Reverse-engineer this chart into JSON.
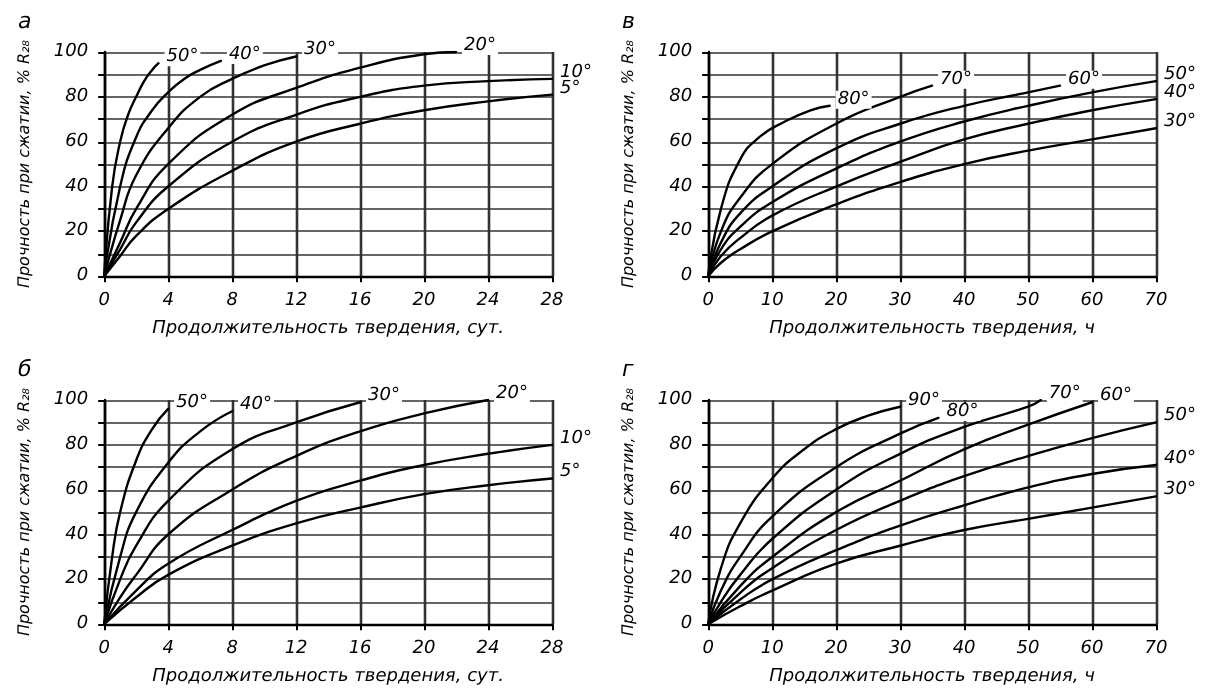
{
  "chart_data": [
    {
      "type": "line",
      "title": "а",
      "xlabel": "Продолжительность твердения, сут.",
      "ylabel": "Прочность при сжатии, % R₂₈",
      "xlim": [
        0,
        28
      ],
      "xticks": [
        0,
        4,
        8,
        12,
        16,
        20,
        24,
        28
      ],
      "ylim": [
        0,
        100
      ],
      "yticks": [
        0,
        {
          "value": 10,
          "label": null
        },
        20,
        {
          "value": 30,
          "label": null
        },
        40,
        {
          "value": 50,
          "label": null
        },
        60,
        {
          "value": 70,
          "label": null
        },
        80,
        {
          "value": 90,
          "label": null
        },
        100
      ],
      "grid": true,
      "legend": false,
      "marker": "none",
      "line_style": "solid",
      "series": [
        {
          "name": "50°",
          "color": "#000000",
          "x": [
            0,
            0.5,
            1,
            1.5,
            2,
            2.5,
            3,
            3.4
          ],
          "values": [
            0,
            40,
            60,
            72,
            80,
            87,
            92,
            95
          ]
        },
        {
          "name": "40°",
          "color": "#000000",
          "x": [
            0,
            1,
            2,
            3,
            4,
            5,
            6,
            7.3
          ],
          "values": [
            0,
            40,
            62,
            74,
            82,
            88,
            92,
            96
          ]
        },
        {
          "name": "30°",
          "color": "#000000",
          "x": [
            0,
            1,
            2,
            4,
            6,
            8,
            10,
            12
          ],
          "values": [
            0,
            25,
            45,
            66,
            80,
            88,
            94,
            98
          ]
        },
        {
          "name": "20°",
          "color": "#000000",
          "x": [
            0,
            1,
            2,
            4,
            8,
            12,
            16,
            20,
            22
          ],
          "values": [
            0,
            15,
            30,
            50,
            72,
            84,
            93,
            99,
            100
          ]
        },
        {
          "name": "10°",
          "color": "#000000",
          "x": [
            0,
            1,
            2,
            4,
            8,
            12,
            16,
            20,
            24,
            28
          ],
          "values": [
            0,
            12,
            24,
            40,
            60,
            72,
            80,
            85,
            87,
            88
          ]
        },
        {
          "name": "5°",
          "color": "#000000",
          "x": [
            0,
            1,
            2,
            4,
            8,
            12,
            16,
            20,
            24,
            28
          ],
          "values": [
            0,
            9,
            18,
            30,
            47,
            60,
            68,
            74,
            78,
            81
          ]
        }
      ]
    },
    {
      "type": "line",
      "title": "в",
      "xlabel": "Продолжительность твердения, ч",
      "ylabel": "Прочность при сжатии, % R₂₈",
      "xlim": [
        0,
        70
      ],
      "xticks": [
        0,
        10,
        20,
        30,
        40,
        50,
        60,
        70
      ],
      "ylim": [
        0,
        100
      ],
      "yticks": [
        0,
        {
          "value": 10,
          "label": null
        },
        20,
        {
          "value": 30,
          "label": null
        },
        40,
        {
          "value": 50,
          "label": null
        },
        60,
        {
          "value": 70,
          "label": null
        },
        80,
        {
          "value": 90,
          "label": null
        },
        100
      ],
      "grid": true,
      "legend": false,
      "marker": "none",
      "line_style": "solid",
      "series": [
        {
          "name": "80°",
          "color": "#000000",
          "x": [
            0,
            2,
            5,
            8,
            12,
            16,
            19
          ],
          "values": [
            0,
            30,
            52,
            62,
            69,
            74,
            76
          ]
        },
        {
          "name": "70°",
          "color": "#000000",
          "x": [
            0,
            2,
            5,
            10,
            20,
            30,
            35
          ],
          "values": [
            0,
            20,
            35,
            50,
            68,
            80,
            85
          ]
        },
        {
          "name": "60°",
          "color": "#000000",
          "x": [
            0,
            2,
            5,
            10,
            20,
            30,
            40,
            50,
            55
          ],
          "values": [
            0,
            15,
            28,
            40,
            57,
            68,
            76,
            82,
            85
          ]
        },
        {
          "name": "50°",
          "color": "#000000",
          "x": [
            0,
            2,
            5,
            10,
            20,
            30,
            40,
            50,
            60,
            70
          ],
          "values": [
            0,
            12,
            22,
            33,
            48,
            60,
            69,
            76,
            82,
            87
          ]
        },
        {
          "name": "40°",
          "color": "#000000",
          "x": [
            0,
            2,
            5,
            10,
            20,
            30,
            40,
            50,
            60,
            70
          ],
          "values": [
            0,
            9,
            17,
            27,
            40,
            51,
            61,
            68,
            74,
            79
          ]
        },
        {
          "name": "30°",
          "color": "#000000",
          "x": [
            0,
            2,
            5,
            10,
            20,
            30,
            40,
            50,
            60,
            70
          ],
          "values": [
            0,
            6,
            12,
            20,
            32,
            42,
            50,
            56,
            61,
            66
          ]
        }
      ]
    },
    {
      "type": "line",
      "title": "б",
      "xlabel": "Продолжительность твердения, сут.",
      "ylabel": "Прочность при сжатии, % R₂₈",
      "xlim": [
        0,
        28
      ],
      "xticks": [
        0,
        4,
        8,
        12,
        16,
        20,
        24,
        28
      ],
      "ylim": [
        0,
        100
      ],
      "yticks": [
        0,
        {
          "value": 10,
          "label": null
        },
        20,
        {
          "value": 30,
          "label": null
        },
        40,
        {
          "value": 50,
          "label": null
        },
        60,
        {
          "value": 70,
          "label": null
        },
        80,
        {
          "value": 90,
          "label": null
        },
        100
      ],
      "grid": true,
      "legend": false,
      "marker": "none",
      "line_style": "solid",
      "series": [
        {
          "name": "50°",
          "color": "#000000",
          "x": [
            0,
            0.5,
            1,
            2,
            3,
            4
          ],
          "values": [
            0,
            30,
            50,
            73,
            87,
            96
          ]
        },
        {
          "name": "40°",
          "color": "#000000",
          "x": [
            0,
            1,
            2,
            4,
            6,
            8
          ],
          "values": [
            0,
            30,
            50,
            72,
            86,
            95
          ]
        },
        {
          "name": "30°",
          "color": "#000000",
          "x": [
            0,
            1,
            2,
            4,
            8,
            12,
            16
          ],
          "values": [
            0,
            20,
            35,
            55,
            78,
            90,
            99
          ]
        },
        {
          "name": "20°",
          "color": "#000000",
          "x": [
            0,
            1,
            2,
            4,
            8,
            12,
            16,
            20,
            24
          ],
          "values": [
            0,
            12,
            22,
            40,
            60,
            75,
            86,
            94,
            100
          ]
        },
        {
          "name": "10°",
          "color": "#000000",
          "x": [
            0,
            2,
            4,
            8,
            12,
            16,
            20,
            24,
            28
          ],
          "values": [
            0,
            15,
            27,
            42,
            55,
            64,
            71,
            76,
            80
          ]
        },
        {
          "name": "5°",
          "color": "#000000",
          "x": [
            0,
            2,
            4,
            8,
            12,
            16,
            20,
            24,
            28
          ],
          "values": [
            0,
            12,
            22,
            35,
            45,
            52,
            58,
            62,
            65
          ]
        }
      ]
    },
    {
      "type": "line",
      "title": "г",
      "xlabel": "Продолжительность твердения, ч",
      "ylabel": "Прочность при сжатии, % R₂₈",
      "xlim": [
        0,
        70
      ],
      "xticks": [
        0,
        10,
        20,
        30,
        40,
        50,
        60,
        70
      ],
      "ylim": [
        0,
        100
      ],
      "yticks": [
        0,
        {
          "value": 10,
          "label": null
        },
        20,
        {
          "value": 30,
          "label": null
        },
        40,
        {
          "value": 50,
          "label": null
        },
        60,
        {
          "value": 70,
          "label": null
        },
        80,
        {
          "value": 90,
          "label": null
        },
        100
      ],
      "grid": true,
      "legend": false,
      "marker": "none",
      "line_style": "solid",
      "series": [
        {
          "name": "90°",
          "color": "#000000",
          "x": [
            0,
            2,
            5,
            10,
            15,
            20,
            25,
            30
          ],
          "values": [
            0,
            25,
            45,
            65,
            78,
            87,
            93,
            97
          ]
        },
        {
          "name": "80°",
          "color": "#000000",
          "x": [
            0,
            2,
            5,
            10,
            20,
            30,
            36
          ],
          "values": [
            0,
            15,
            30,
            48,
            70,
            85,
            92
          ]
        },
        {
          "name": "70°",
          "color": "#000000",
          "x": [
            0,
            2,
            5,
            10,
            20,
            30,
            40,
            50,
            52
          ],
          "values": [
            0,
            10,
            22,
            38,
            60,
            76,
            88,
            97,
            100
          ]
        },
        {
          "name": "60°",
          "color": "#000000",
          "x": [
            0,
            5,
            10,
            20,
            30,
            40,
            50,
            60
          ],
          "values": [
            0,
            17,
            30,
            50,
            64,
            78,
            89,
            99
          ]
        },
        {
          "name": "50°",
          "color": "#000000",
          "x": [
            0,
            5,
            10,
            20,
            30,
            40,
            50,
            60,
            70
          ],
          "values": [
            0,
            14,
            25,
            42,
            55,
            66,
            75,
            83,
            90
          ]
        },
        {
          "name": "40°",
          "color": "#000000",
          "x": [
            0,
            5,
            10,
            20,
            30,
            40,
            50,
            60,
            70
          ],
          "values": [
            0,
            11,
            20,
            33,
            44,
            53,
            61,
            67,
            71
          ]
        },
        {
          "name": "30°",
          "color": "#000000",
          "x": [
            0,
            5,
            10,
            20,
            30,
            40,
            50,
            60,
            70
          ],
          "values": [
            0,
            8,
            15,
            27,
            35,
            42,
            47,
            52,
            57
          ]
        }
      ]
    }
  ]
}
